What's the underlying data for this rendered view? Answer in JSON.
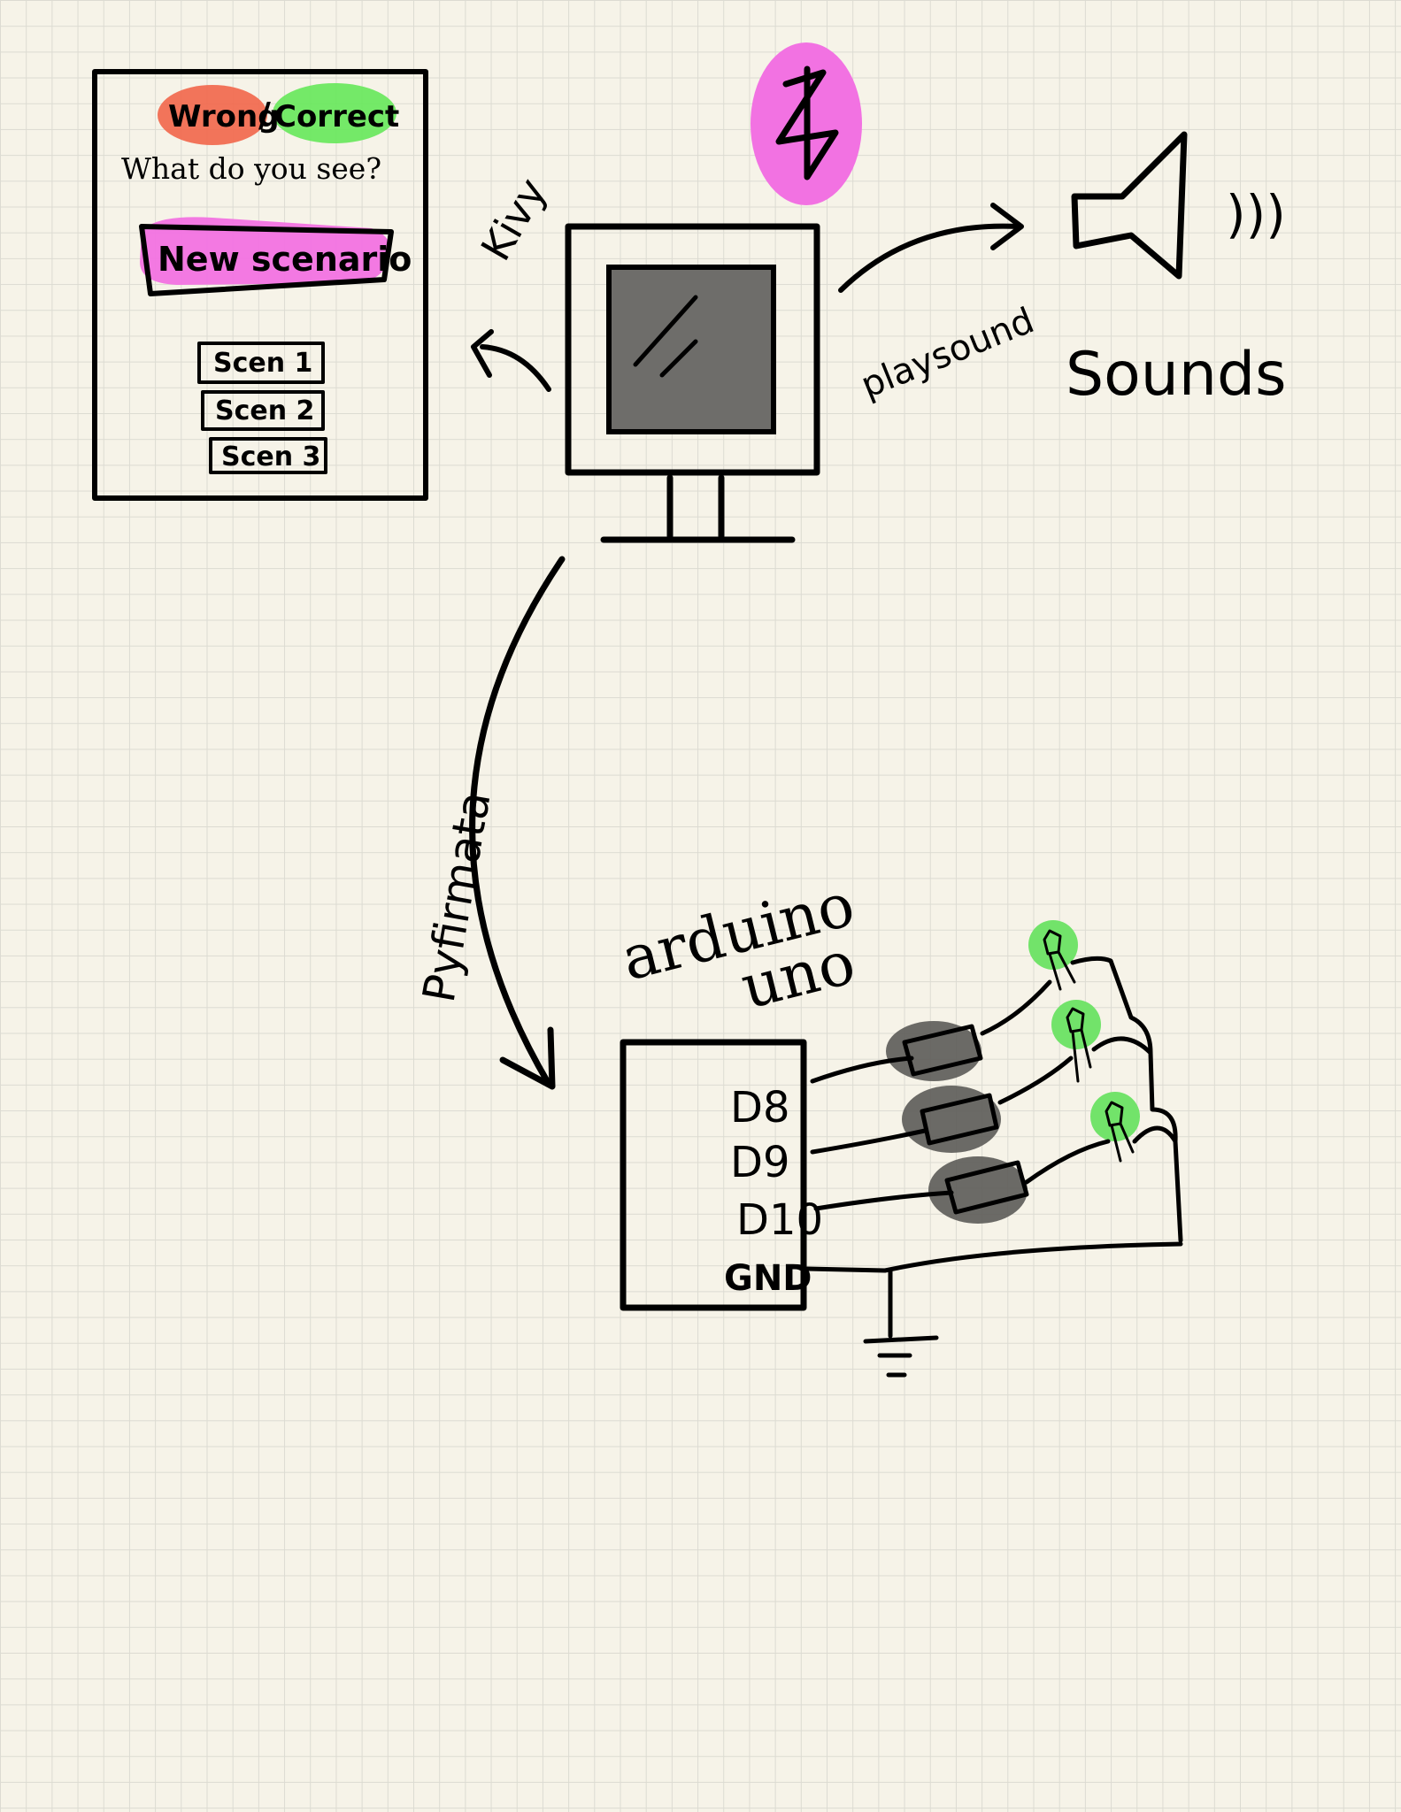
{
  "colors": {
    "paper": "#f6f3e8",
    "grid": "#dcdbd2",
    "ink": "#000000",
    "wrong_highlight": "#f2664a",
    "correct_highlight": "#66e85a",
    "new_scenario_highlight": "#f272e2",
    "bluetooth_blob": "#f272e2",
    "screen_fill": "#6e6d6a",
    "resistor_fill": "#5c5b58",
    "led_glow": "#72e36a"
  },
  "ui_mockup": {
    "wrong_label": "Wrong",
    "separator": "/",
    "correct_label": "Correct",
    "question": "What do you see?",
    "new_scenario_button": "New scenario",
    "scenario_buttons": [
      "Scen 1",
      "Scen 2",
      "Scen 3"
    ]
  },
  "computer": {
    "bluetooth_icon": "bluetooth-icon",
    "monitor_icon": "monitor-icon"
  },
  "labels": {
    "ui_link": "Kivy",
    "sound_link": "playsound",
    "sounds": "Sounds",
    "arduino_link": "Pyfirmata",
    "board_line1": "arduino",
    "board_line2": "uno"
  },
  "speaker": {
    "icon": "speaker-icon",
    "waves": ")))"
  },
  "arduino": {
    "pins": [
      "D8",
      "D9",
      "D10",
      "GND"
    ],
    "ground_icon": "ground-symbol-icon"
  }
}
